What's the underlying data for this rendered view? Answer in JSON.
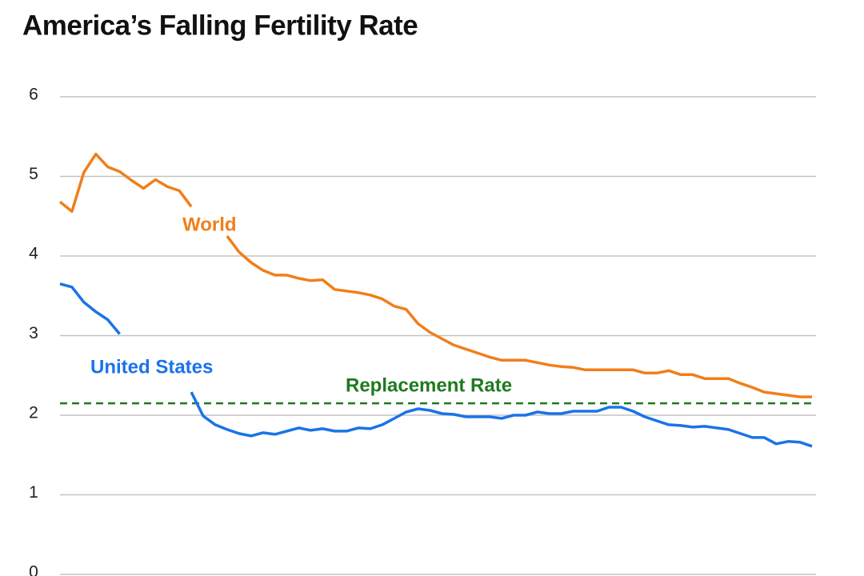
{
  "chart_data": {
    "type": "line",
    "title": "America’s Falling Fertility Rate",
    "ylim": [
      0,
      6
    ],
    "yticks": [
      0,
      1,
      2,
      3,
      4,
      5,
      6
    ],
    "grid": true,
    "series": [
      {
        "name": "World",
        "color": "#f07f1a",
        "values": [
          4.68,
          4.56,
          5.05,
          5.28,
          5.12,
          5.06,
          4.95,
          4.85,
          4.96,
          4.87,
          4.82,
          4.62,
          null,
          null,
          4.25,
          4.05,
          3.92,
          3.82,
          3.76,
          3.76,
          3.72,
          3.69,
          3.7,
          3.58,
          3.56,
          3.54,
          3.51,
          3.46,
          3.37,
          3.33,
          3.15,
          3.04,
          2.96,
          2.88,
          2.83,
          2.78,
          2.73,
          2.69,
          2.69,
          2.69,
          2.66,
          2.63,
          2.61,
          2.6,
          2.57,
          2.57,
          2.57,
          2.57,
          2.57,
          2.53,
          2.53,
          2.56,
          2.51,
          2.51,
          2.46,
          2.46,
          2.46,
          2.4,
          2.35,
          2.29,
          2.27,
          2.25,
          2.23,
          2.23
        ]
      },
      {
        "name": "United States",
        "color": "#1a73e8",
        "values": [
          3.65,
          3.61,
          3.42,
          3.3,
          3.2,
          3.02,
          null,
          null,
          null,
          null,
          null,
          2.29,
          1.99,
          1.88,
          1.82,
          1.77,
          1.74,
          1.78,
          1.76,
          1.8,
          1.84,
          1.81,
          1.83,
          1.8,
          1.8,
          1.84,
          1.83,
          1.88,
          1.96,
          2.04,
          2.08,
          2.06,
          2.02,
          2.01,
          1.98,
          1.98,
          1.98,
          1.96,
          2.0,
          2.0,
          2.04,
          2.02,
          2.02,
          2.05,
          2.05,
          2.05,
          2.1,
          2.1,
          2.05,
          1.98,
          1.93,
          1.88,
          1.87,
          1.85,
          1.86,
          1.84,
          1.82,
          1.77,
          1.72,
          1.72,
          1.64,
          1.67,
          1.66,
          1.61
        ]
      }
    ],
    "reference_line": {
      "label": "Replacement Rate",
      "value": 2.15,
      "color": "#1e7a1e"
    }
  }
}
